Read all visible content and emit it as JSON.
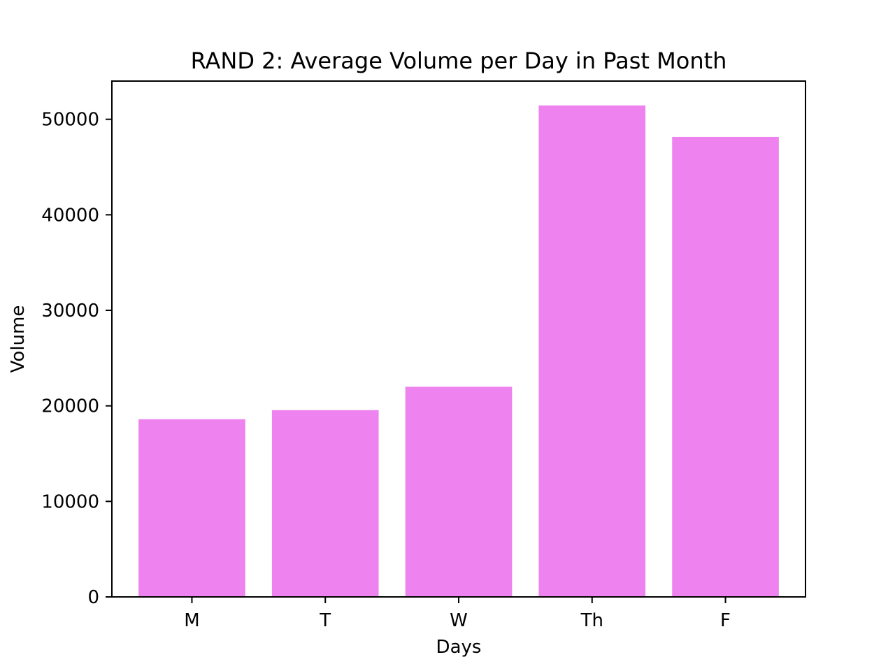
{
  "chart_data": {
    "type": "bar",
    "title": "RAND 2: Average Volume per Day in Past Month",
    "xlabel": "Days",
    "ylabel": "Volume",
    "categories": [
      "M",
      "T",
      "W",
      "Th",
      "F"
    ],
    "values": [
      18600,
      19550,
      22000,
      51450,
      48150
    ],
    "ylim": [
      0,
      54000
    ],
    "yticks": [
      0,
      10000,
      20000,
      30000,
      40000,
      50000
    ],
    "bar_color": "#ee82ee",
    "grid": false,
    "legend": "none"
  }
}
